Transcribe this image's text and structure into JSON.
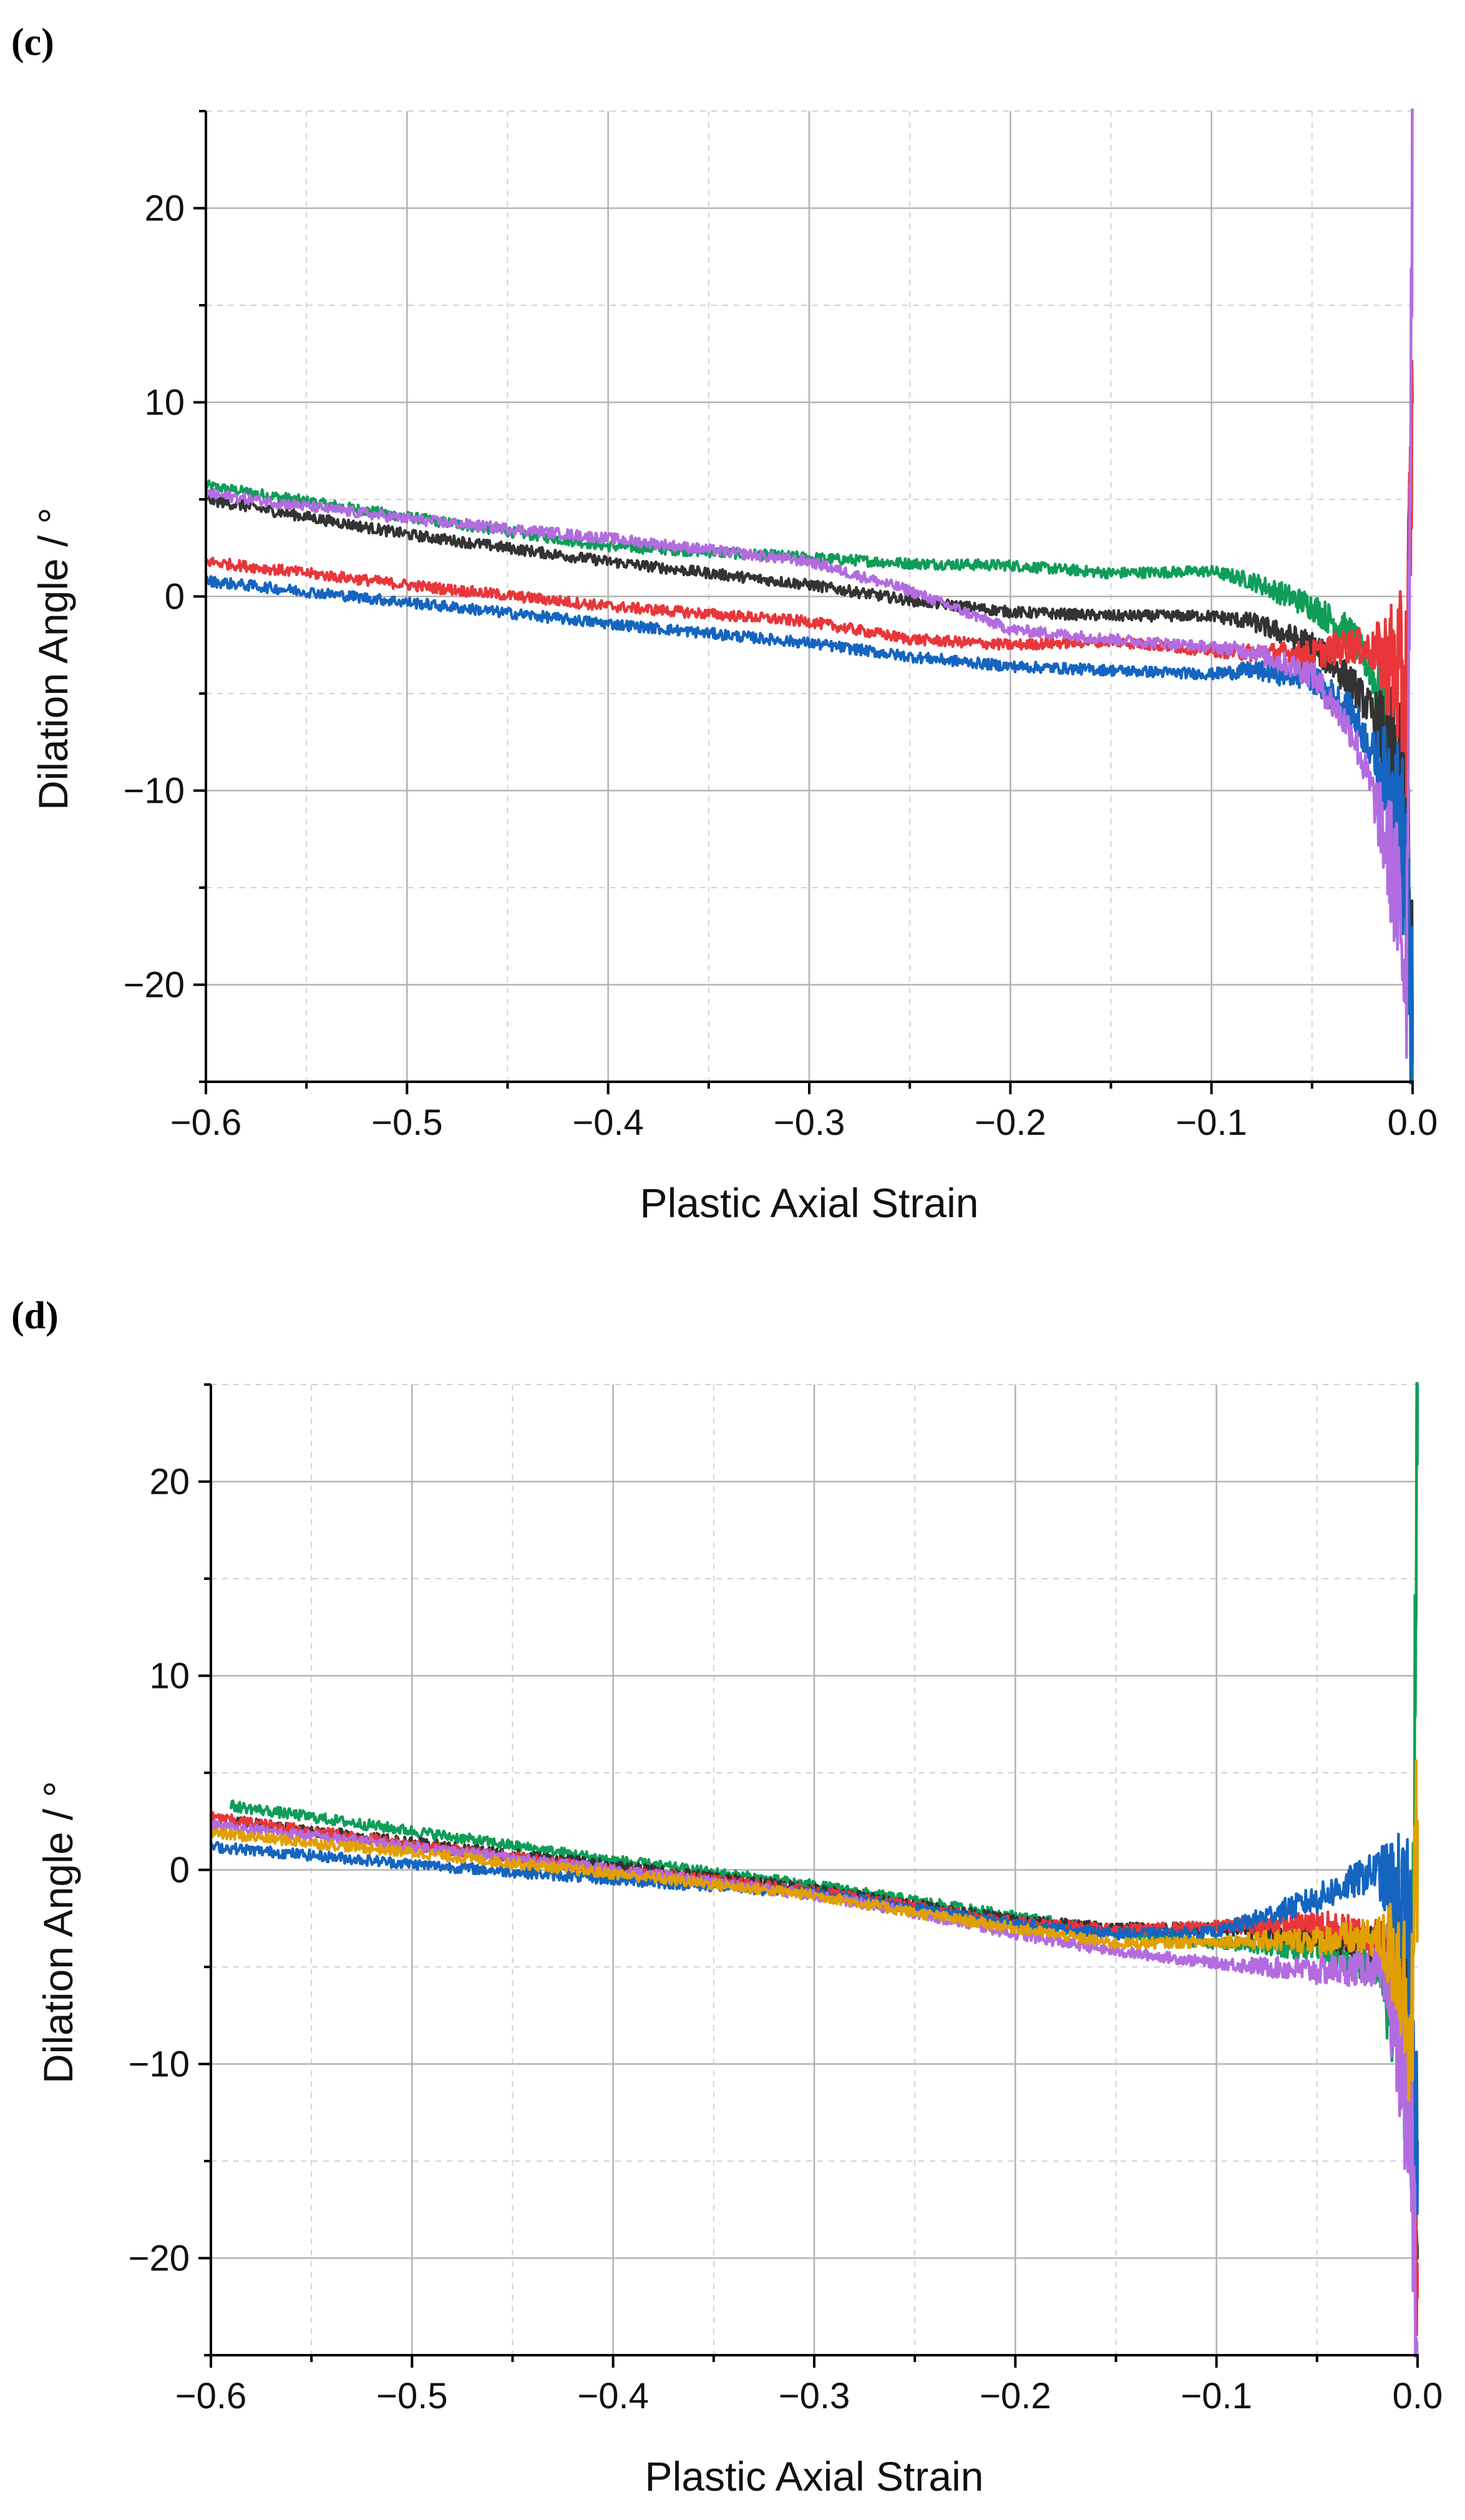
{
  "chart_data": [
    {
      "panel": "(c)",
      "type": "line",
      "xlabel": "Plastic Axial Strain",
      "ylabel": "Dilation Angle / °",
      "xlim": [
        -0.6,
        0.0
      ],
      "ylim": [
        -25,
        25
      ],
      "xticks": [
        "−0.6",
        "−0.5",
        "−0.4",
        "−0.3",
        "−0.2",
        "−0.1",
        "0.0"
      ],
      "xtick_values": [
        -0.6,
        -0.5,
        -0.4,
        -0.3,
        -0.2,
        -0.1,
        0.0
      ],
      "yticks": [
        "−20",
        "−10",
        "0",
        "10",
        "20"
      ],
      "ytick_values": [
        -20,
        -10,
        0,
        10,
        20
      ],
      "grid": true,
      "series": [
        {
          "name": "green",
          "color": "#0f9d58",
          "x": [
            -0.6,
            -0.5,
            -0.4,
            -0.3,
            -0.25,
            -0.2,
            -0.15,
            -0.1,
            -0.08,
            -0.05,
            -0.03,
            -0.02,
            -0.01,
            -0.003,
            0.0
          ],
          "y": [
            5.7,
            4.1,
            2.6,
            2.0,
            1.7,
            1.6,
            1.2,
            1.3,
            0.8,
            -0.5,
            -2.0,
            -4.0,
            -8.0,
            -15.0,
            -25.0
          ]
        },
        {
          "name": "black",
          "color": "#333333",
          "x": [
            -0.6,
            -0.5,
            -0.4,
            -0.3,
            -0.25,
            -0.2,
            -0.15,
            -0.1,
            -0.08,
            -0.05,
            -0.03,
            -0.02,
            -0.01,
            -0.003,
            0.0
          ],
          "y": [
            5.0,
            3.2,
            1.8,
            0.6,
            -0.2,
            -0.8,
            -1.0,
            -1.0,
            -1.3,
            -2.5,
            -4.5,
            -6.0,
            -8.0,
            -12.0,
            -22.0
          ]
        },
        {
          "name": "red",
          "color": "#e8363a",
          "x": [
            -0.6,
            -0.5,
            -0.4,
            -0.3,
            -0.25,
            -0.2,
            -0.15,
            -0.1,
            -0.08,
            -0.05,
            -0.03,
            -0.02,
            -0.01,
            -0.003,
            0.0
          ],
          "y": [
            1.8,
            0.6,
            -0.5,
            -1.3,
            -2.2,
            -2.5,
            -2.3,
            -2.8,
            -2.9,
            -3.0,
            -2.5,
            -2.8,
            -3.5,
            -5.0,
            10.0
          ]
        },
        {
          "name": "blue",
          "color": "#1565c0",
          "x": [
            -0.6,
            -0.5,
            -0.4,
            -0.3,
            -0.25,
            -0.2,
            -0.15,
            -0.1,
            -0.08,
            -0.05,
            -0.03,
            -0.02,
            -0.01,
            -0.003,
            0.0
          ],
          "y": [
            0.8,
            -0.3,
            -1.4,
            -2.4,
            -3.1,
            -3.6,
            -3.8,
            -4.0,
            -3.8,
            -4.2,
            -6.0,
            -8.0,
            -10.0,
            -14.0,
            -24.0
          ]
        },
        {
          "name": "purple",
          "color": "#b36ce0",
          "x": [
            -0.6,
            -0.5,
            -0.4,
            -0.3,
            -0.25,
            -0.2,
            -0.15,
            -0.1,
            -0.08,
            -0.05,
            -0.03,
            -0.02,
            -0.01,
            -0.003,
            0.0
          ],
          "y": [
            5.3,
            4.0,
            3.0,
            1.8,
            0.3,
            -1.7,
            -2.2,
            -2.6,
            -2.8,
            -4.0,
            -7.0,
            -10.0,
            -14.0,
            -19.0,
            25.0
          ]
        }
      ]
    },
    {
      "panel": "(d)",
      "type": "line",
      "xlabel": "Plastic Axial Strain",
      "ylabel": "Dilation Angle / °",
      "xlim": [
        -0.6,
        0.0
      ],
      "ylim": [
        -25,
        25
      ],
      "xticks": [
        "−0.6",
        "−0.5",
        "−0.4",
        "−0.3",
        "−0.2",
        "−0.1",
        "0.0"
      ],
      "xtick_values": [
        -0.6,
        -0.5,
        -0.4,
        -0.3,
        -0.2,
        -0.1,
        0.0
      ],
      "yticks": [
        "−20",
        "−10",
        "0",
        "10",
        "20"
      ],
      "ytick_values": [
        -20,
        -10,
        0,
        10,
        20
      ],
      "grid": true,
      "series": [
        {
          "name": "green",
          "color": "#0f9d58",
          "x": [
            -0.59,
            -0.5,
            -0.4,
            -0.3,
            -0.25,
            -0.2,
            -0.15,
            -0.1,
            -0.05,
            -0.02,
            -0.01,
            -0.003,
            0.0
          ],
          "y": [
            3.3,
            2.0,
            0.5,
            -0.8,
            -1.6,
            -2.4,
            -3.2,
            -3.8,
            -4.0,
            -5.0,
            -8.0,
            -12.0,
            25.0
          ]
        },
        {
          "name": "black",
          "color": "#333333",
          "x": [
            -0.59,
            -0.5,
            -0.4,
            -0.3,
            -0.25,
            -0.2,
            -0.15,
            -0.1,
            -0.05,
            -0.02,
            -0.01,
            -0.003,
            0.0
          ],
          "y": [
            2.5,
            1.4,
            0.2,
            -1.0,
            -1.8,
            -2.6,
            -3.0,
            -3.0,
            -3.3,
            -4.0,
            -6.0,
            -10.0,
            -20.0
          ]
        },
        {
          "name": "red",
          "color": "#e8363a",
          "x": [
            -0.6,
            -0.5,
            -0.4,
            -0.3,
            -0.25,
            -0.2,
            -0.15,
            -0.1,
            -0.05,
            -0.02,
            -0.01,
            -0.003,
            0.0
          ],
          "y": [
            2.7,
            1.3,
            0.0,
            -1.1,
            -1.9,
            -2.7,
            -3.1,
            -2.9,
            -2.8,
            -3.5,
            -6.0,
            -12.0,
            -22.0
          ]
        },
        {
          "name": "blue",
          "color": "#1565c0",
          "x": [
            -0.6,
            -0.5,
            -0.4,
            -0.3,
            -0.25,
            -0.2,
            -0.15,
            -0.1,
            -0.05,
            -0.02,
            -0.01,
            -0.003,
            0.0
          ],
          "y": [
            1.2,
            0.3,
            -0.5,
            -1.2,
            -2.0,
            -2.8,
            -3.3,
            -3.2,
            -1.5,
            0.0,
            -1.5,
            -4.0,
            -14.0
          ]
        },
        {
          "name": "purple",
          "color": "#b36ce0",
          "x": [
            -0.6,
            -0.5,
            -0.4,
            -0.3,
            -0.25,
            -0.2,
            -0.15,
            -0.1,
            -0.05,
            -0.02,
            -0.01,
            -0.003,
            0.0
          ],
          "y": [
            2.3,
            1.2,
            0.0,
            -1.3,
            -2.2,
            -3.3,
            -4.2,
            -4.8,
            -5.2,
            -5.0,
            -8.0,
            -14.0,
            -25.0
          ]
        },
        {
          "name": "orange",
          "color": "#e0a000",
          "x": [
            -0.6,
            -0.5,
            -0.4,
            -0.3,
            -0.25,
            -0.2,
            -0.15,
            -0.1,
            -0.05,
            -0.02,
            -0.01,
            -0.003,
            0.0
          ],
          "y": [
            1.9,
            0.9,
            -0.2,
            -1.3,
            -2.2,
            -3.0,
            -3.8,
            -3.7,
            -3.6,
            -3.5,
            -4.5,
            -8.0,
            2.5
          ]
        }
      ]
    }
  ]
}
